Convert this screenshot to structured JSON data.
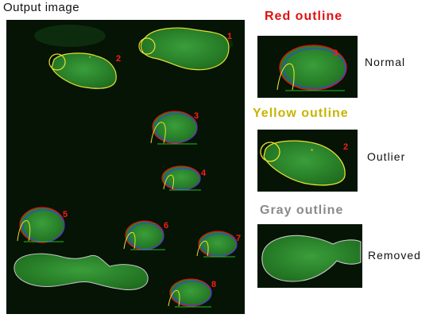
{
  "main": {
    "title": "Output image",
    "cell_labels": [
      "1",
      "2",
      "3",
      "4",
      "5",
      "6",
      "7",
      "8"
    ]
  },
  "legend": [
    {
      "title": "Red outline",
      "label": "Normal",
      "color": "#e01010",
      "example_number": "3"
    },
    {
      "title": "Yellow outline",
      "label": "Outlier",
      "color": "#c8b400",
      "example_number": "2"
    },
    {
      "title": "Gray outline",
      "label": "Removed",
      "color": "#8a8a8a"
    }
  ],
  "colors": {
    "background": "#051405",
    "cell_fill": "#2d8a2d",
    "normal_outline": "#e01010",
    "outlier_outline": "#e8e030",
    "removed_outline": "#c8c8c8",
    "blue_outline": "#3040ff",
    "label_red": "#ff1a1a"
  }
}
